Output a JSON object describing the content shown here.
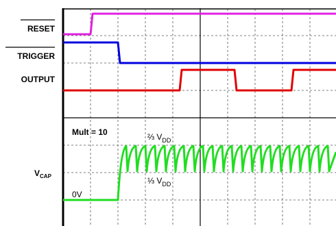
{
  "labels": {
    "reset": "RESET",
    "trigger": "TRIGGER",
    "output": "OUTPUT",
    "vcap": {
      "main": "V",
      "sub": "CAP"
    }
  },
  "annotations": {
    "mult": "Mult = 10",
    "two_thirds": {
      "main": "⅔ V",
      "sub": "DD"
    },
    "one_third": {
      "main": "⅓ V",
      "sub": "DD"
    },
    "zero": "0V"
  }
}
